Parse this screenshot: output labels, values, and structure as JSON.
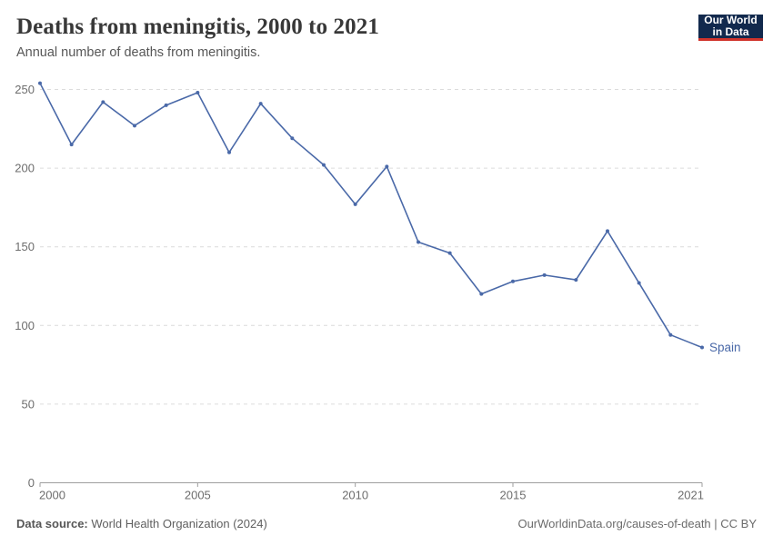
{
  "header": {
    "title": "Deaths from meningitis, 2000 to 2021",
    "subtitle": "Annual number of deaths from meningitis.",
    "logo": {
      "line1": "Our World",
      "line2": "in Data"
    }
  },
  "chart_data": {
    "type": "line",
    "title": "Deaths from meningitis, 2000 to 2021",
    "subtitle": "Annual number of deaths from meningitis.",
    "xlabel": "",
    "ylabel": "",
    "x": [
      2000,
      2001,
      2002,
      2003,
      2004,
      2005,
      2006,
      2007,
      2008,
      2009,
      2010,
      2011,
      2012,
      2013,
      2014,
      2015,
      2016,
      2017,
      2018,
      2019,
      2020,
      2021
    ],
    "series": [
      {
        "name": "Spain",
        "color": "#4a69a8",
        "values": [
          254,
          215,
          242,
          227,
          240,
          248,
          210,
          241,
          219,
          202,
          177,
          201,
          153,
          146,
          120,
          128,
          132,
          129,
          160,
          127,
          94,
          86
        ]
      }
    ],
    "x_ticks": [
      2000,
      2005,
      2010,
      2015,
      2021
    ],
    "y_ticks": [
      0,
      50,
      100,
      150,
      200,
      250
    ],
    "xlim": [
      2000,
      2021
    ],
    "ylim": [
      0,
      250
    ],
    "grid": "horizontal-dashed",
    "legend_position": "end-of-line-label",
    "end_label": "Spain"
  },
  "footer": {
    "source_label": "Data source:",
    "source_text": "World Health Organization (2024)",
    "license_text": "OurWorldinData.org/causes-of-death | CC BY"
  },
  "colors": {
    "line": "#4a69a8",
    "logo_bg": "#12294d",
    "logo_stripe": "#d0342c",
    "grid": "#dcdcdc",
    "axis": "#9e9e9e",
    "tick_label": "#6d6d6d",
    "title": "#383838",
    "subtitle": "#575757",
    "footer": "#5f5f5f"
  }
}
